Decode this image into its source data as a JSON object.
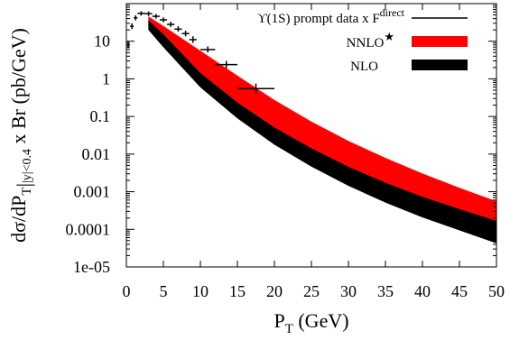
{
  "chart_data": {
    "type": "line",
    "xlabel": "P",
    "xlabel_sub": "T",
    "xlabel_unit": " (GeV)",
    "ylabel_parts": [
      "dσ/dP",
      "T",
      "|",
      "|y|<0.4",
      " x Br (pb/GeV)"
    ],
    "xlim": [
      0,
      50
    ],
    "ylim": [
      1e-05,
      100
    ],
    "y_scale": "log",
    "x_ticks": [
      {
        "value": 0,
        "label": "0"
      },
      {
        "value": 5,
        "label": "5"
      },
      {
        "value": 10,
        "label": "10"
      },
      {
        "value": 15,
        "label": "15"
      },
      {
        "value": 20,
        "label": "20"
      },
      {
        "value": 25,
        "label": "25"
      },
      {
        "value": 30,
        "label": "30"
      },
      {
        "value": 35,
        "label": "35"
      },
      {
        "value": 40,
        "label": "40"
      },
      {
        "value": 45,
        "label": "45"
      },
      {
        "value": 50,
        "label": "50"
      }
    ],
    "y_ticks": [
      {
        "value": 10,
        "label": "10"
      },
      {
        "value": 1,
        "label": "1"
      },
      {
        "value": 0.1,
        "label": "0.1"
      },
      {
        "value": 0.01,
        "label": "0.01"
      },
      {
        "value": 0.001,
        "label": "0.001"
      },
      {
        "value": 0.0001,
        "label": "0.0001"
      },
      {
        "value": 1e-05,
        "label": "1e-05"
      }
    ],
    "legend_position": "top-right",
    "series": [
      {
        "name": "NNLO",
        "name_sup": "★",
        "kind": "band",
        "color": "#ff0000",
        "x": [
          3,
          5,
          10,
          15,
          20,
          25,
          30,
          35,
          40,
          45,
          50
        ],
        "low": [
          25,
          11,
          1.1,
          0.18,
          0.038,
          0.0105,
          0.0033,
          0.00125,
          0.00052,
          0.00024,
          0.000115
        ],
        "high": [
          45,
          25,
          5.5,
          1.2,
          0.27,
          0.072,
          0.022,
          0.0078,
          0.003,
          0.00125,
          0.00055
        ]
      },
      {
        "name": "NLO",
        "kind": "band",
        "color": "#000000",
        "x": [
          3,
          5,
          10,
          15,
          20,
          25,
          30,
          35,
          40,
          45,
          50
        ],
        "low": [
          20,
          7,
          0.6,
          0.09,
          0.018,
          0.0047,
          0.00145,
          0.00052,
          0.00021,
          9.5e-05,
          4.3e-05
        ],
        "high": [
          35,
          15,
          1.4,
          0.23,
          0.05,
          0.014,
          0.0045,
          0.0017,
          0.00072,
          0.00034,
          0.000165
        ]
      },
      {
        "name": "ϒ(1S) prompt data x F",
        "name_sup": "direct",
        "kind": "points",
        "color": "#000000",
        "points": [
          {
            "x": 0.25,
            "y": 8,
            "xerr": 0.25,
            "ylo": 6.5,
            "yhi": 10
          },
          {
            "x": 0.75,
            "y": 25,
            "xerr": 0.25,
            "ylo": 21,
            "yhi": 30
          },
          {
            "x": 1.25,
            "y": 42,
            "xerr": 0.25,
            "ylo": 36,
            "yhi": 49
          },
          {
            "x": 2.0,
            "y": 55,
            "xerr": 0.5,
            "ylo": 48,
            "yhi": 63
          },
          {
            "x": 3.0,
            "y": 54,
            "xerr": 0.5,
            "ylo": 47,
            "yhi": 62
          },
          {
            "x": 4.0,
            "y": 46,
            "xerr": 0.5,
            "ylo": 40,
            "yhi": 53
          },
          {
            "x": 5.0,
            "y": 37,
            "xerr": 0.5,
            "ylo": 32,
            "yhi": 43
          },
          {
            "x": 6.0,
            "y": 28,
            "xerr": 0.5,
            "ylo": 24,
            "yhi": 33
          },
          {
            "x": 7.0,
            "y": 21,
            "xerr": 0.5,
            "ylo": 18,
            "yhi": 25
          },
          {
            "x": 8.0,
            "y": 16,
            "xerr": 0.5,
            "ylo": 13.5,
            "yhi": 19
          },
          {
            "x": 9.0,
            "y": 11,
            "xerr": 0.5,
            "ylo": 9,
            "yhi": 13.5
          },
          {
            "x": 11.0,
            "y": 6,
            "xerr": 1.0,
            "ylo": 5,
            "yhi": 7.3
          },
          {
            "x": 13.5,
            "y": 2.4,
            "xerr": 1.5,
            "ylo": 1.9,
            "yhi": 3.0
          },
          {
            "x": 17.5,
            "y": 0.55,
            "xerr": 2.5,
            "ylo": 0.4,
            "yhi": 0.75
          }
        ]
      }
    ]
  }
}
